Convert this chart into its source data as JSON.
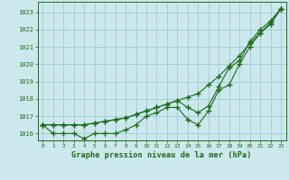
{
  "title": "Graphe pression niveau de la mer (hPa)",
  "background_color": "#cce8ec",
  "grid_color": "#99cdd4",
  "line_color": "#1a6b1a",
  "x_ticks": [
    0,
    1,
    2,
    3,
    4,
    5,
    6,
    7,
    8,
    9,
    10,
    11,
    12,
    13,
    14,
    15,
    16,
    17,
    18,
    19,
    20,
    21,
    22,
    23
  ],
  "y_ticks": [
    1016,
    1017,
    1018,
    1019,
    1020,
    1021,
    1022,
    1023
  ],
  "ylim": [
    1015.6,
    1023.6
  ],
  "xlim": [
    -0.5,
    23.5
  ],
  "s1": [
    1016.5,
    1016.5,
    1016.5,
    1016.5,
    1016.5,
    1016.6,
    1016.7,
    1016.8,
    1016.9,
    1017.1,
    1017.3,
    1017.5,
    1017.7,
    1017.9,
    1018.1,
    1018.3,
    1018.8,
    1019.3,
    1019.9,
    1020.5,
    1021.2,
    1021.8,
    1022.4,
    1023.2
  ],
  "s2": [
    1016.5,
    1016.5,
    1016.5,
    1016.5,
    1016.5,
    1016.6,
    1016.7,
    1016.8,
    1016.9,
    1017.1,
    1017.3,
    1017.5,
    1017.7,
    1017.9,
    1017.5,
    1017.2,
    1017.6,
    1018.7,
    1019.8,
    1020.2,
    1021.3,
    1022.0,
    1022.5,
    1023.2
  ],
  "s3": [
    1016.5,
    1016.0,
    1016.0,
    1016.0,
    1015.7,
    1016.0,
    1016.0,
    1016.0,
    1016.2,
    1016.5,
    1017.0,
    1017.2,
    1017.5,
    1017.5,
    1016.8,
    1016.5,
    1017.3,
    1018.5,
    1018.8,
    1020.0,
    1021.0,
    1021.8,
    1022.3,
    1023.2
  ]
}
